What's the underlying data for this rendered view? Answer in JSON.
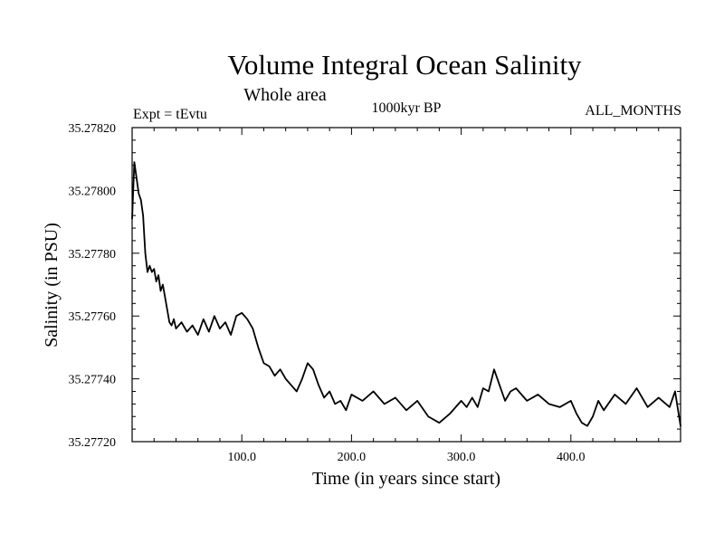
{
  "chart_data": {
    "type": "line",
    "title": "Volume Integral Ocean Salinity",
    "subtitle": "Whole area",
    "experiment": "Expt = tEvtu",
    "period": "1000kyr BP",
    "months": "ALL_MONTHS",
    "xlabel": "Time (in years since start)",
    "ylabel": "Salinity (in PSU)",
    "xlim": [
      0,
      500
    ],
    "ylim": [
      35.2772,
      35.2782
    ],
    "xticks": [
      100,
      200,
      300,
      400
    ],
    "xtick_labels": [
      "100.0",
      "200.0",
      "300.0",
      "400.0"
    ],
    "yticks": [
      35.2772,
      35.2774,
      35.2776,
      35.2778,
      35.278,
      35.2782
    ],
    "ytick_labels": [
      "35.27720",
      "35.27740",
      "35.27760",
      "35.27780",
      "35.27800",
      "35.27820"
    ],
    "series": [
      {
        "name": "Salinity",
        "color": "#000000",
        "x": [
          0,
          2,
          4,
          6,
          8,
          10,
          12,
          14,
          16,
          18,
          20,
          22,
          24,
          26,
          28,
          30,
          32,
          34,
          36,
          38,
          40,
          45,
          50,
          55,
          60,
          65,
          70,
          75,
          80,
          85,
          90,
          95,
          100,
          105,
          110,
          115,
          120,
          125,
          130,
          135,
          140,
          145,
          150,
          155,
          160,
          165,
          170,
          175,
          180,
          185,
          190,
          195,
          200,
          210,
          220,
          230,
          240,
          250,
          260,
          270,
          280,
          290,
          300,
          305,
          310,
          315,
          320,
          325,
          330,
          335,
          340,
          345,
          350,
          360,
          370,
          380,
          390,
          400,
          405,
          410,
          415,
          420,
          425,
          430,
          440,
          450,
          460,
          470,
          480,
          490,
          495,
          500
        ],
        "y": [
          35.27791,
          35.27809,
          35.27804,
          35.27799,
          35.27797,
          35.27792,
          35.2778,
          35.27774,
          35.27776,
          35.27774,
          35.27775,
          35.27771,
          35.27773,
          35.27768,
          35.2777,
          35.27766,
          35.27762,
          35.27758,
          35.27757,
          35.27759,
          35.27756,
          35.27758,
          35.27755,
          35.27757,
          35.27754,
          35.27759,
          35.27755,
          35.2776,
          35.27756,
          35.27758,
          35.27754,
          35.2776,
          35.27761,
          35.27759,
          35.27756,
          35.2775,
          35.27745,
          35.27744,
          35.27741,
          35.27743,
          35.2774,
          35.27738,
          35.27736,
          35.2774,
          35.27745,
          35.27743,
          35.27738,
          35.27734,
          35.27736,
          35.27732,
          35.27733,
          35.2773,
          35.27735,
          35.27733,
          35.27736,
          35.27732,
          35.27734,
          35.2773,
          35.27733,
          35.27728,
          35.27726,
          35.27729,
          35.27733,
          35.27731,
          35.27734,
          35.27731,
          35.27737,
          35.27736,
          35.27743,
          35.27738,
          35.27733,
          35.27736,
          35.27737,
          35.27733,
          35.27735,
          35.27732,
          35.27731,
          35.27733,
          35.27729,
          35.27726,
          35.27725,
          35.27728,
          35.27733,
          35.2773,
          35.27735,
          35.27732,
          35.27737,
          35.27731,
          35.27734,
          35.27731,
          35.27736,
          35.27725
        ]
      }
    ]
  }
}
